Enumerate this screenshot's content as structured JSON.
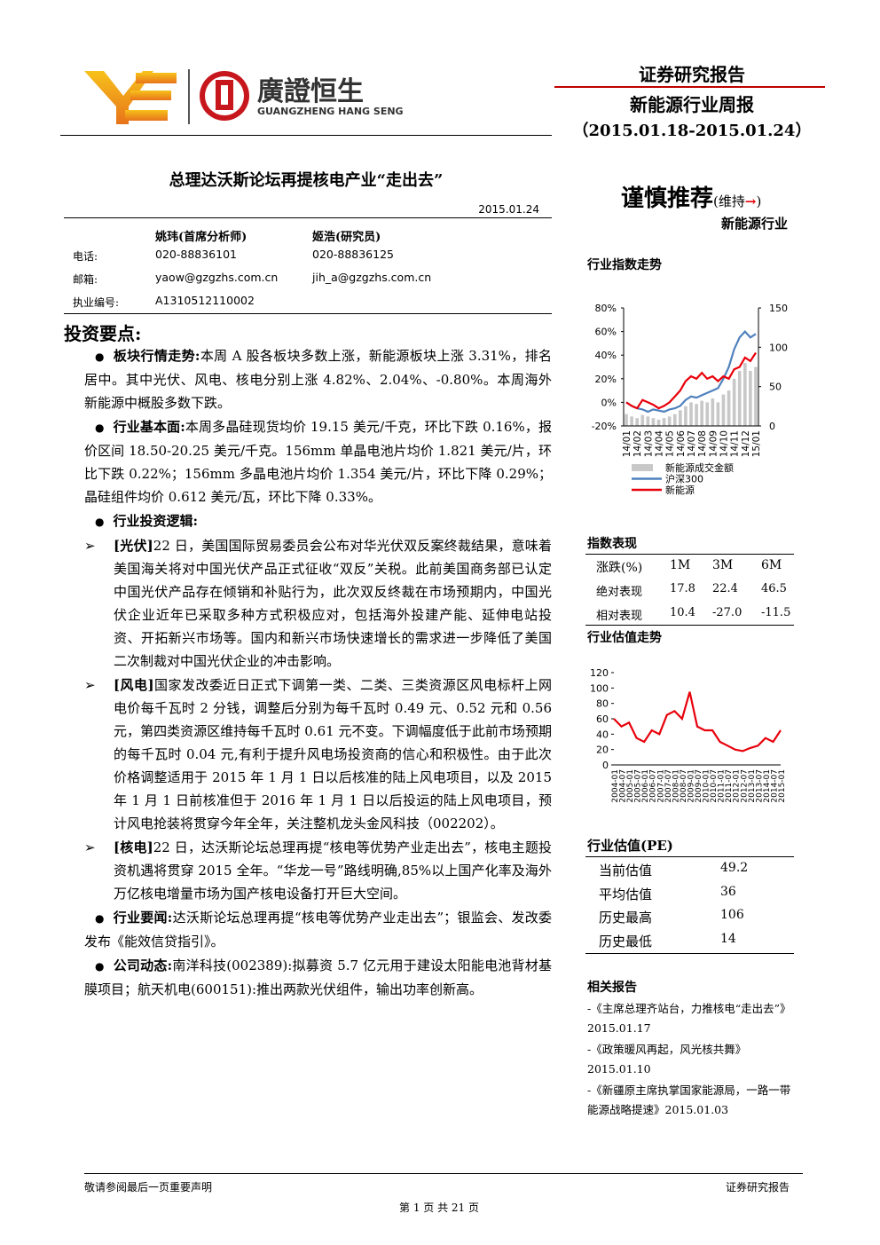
{
  "header": {
    "logo_cn": "廣證恒生",
    "logo_en": "GUANGZHENG HANG SENG",
    "report_type": "证券研究报告",
    "report_name": "新能源行业周报",
    "period": "（2015.01.18-2015.01.24）"
  },
  "title": "总理达沃斯论坛再提核电产业“走出去”",
  "date": "2015.01.24",
  "analysts": {
    "names": [
      "姚玮(首席分析师)",
      "姬浩(研究员)"
    ],
    "rows": [
      {
        "label": "电话:",
        "values": [
          "020-88836101",
          "020-88836125"
        ]
      },
      {
        "label": "邮箱:",
        "values": [
          "yaow@gzgzhs.com.cn",
          "jih_a@gzgzhs.com.cn"
        ]
      },
      {
        "label": "执业编号:",
        "values": [
          "A1310512110002"
        ]
      }
    ]
  },
  "rating": {
    "rating": "谨慎推荐",
    "change_text": "(维持",
    "change_arrow": "→",
    "change_close": ")",
    "industry": "新能源行业"
  },
  "body": {
    "heading": "投资要点:",
    "points": [
      {
        "marker": "dot",
        "label": "板块行情走势:",
        "text": "本周 A 股各板块多数上涨，新能源板块上涨 3.31%，排名居中。其中光伏、风电、核电分别上涨 4.82%、2.04%、-0.80%。本周海外新能源中概股多数下跌。"
      },
      {
        "marker": "dot",
        "label": "行业基本面:",
        "text": "本周多晶硅现货均价 19.15 美元/千克，环比下跌 0.16%，报价区间 18.50-20.25 美元/千克。156mm 单晶电池片均价 1.821 美元/片，环比下跌 0.22%；156mm 多晶电池片均价 1.354 美元/片，环比下降 0.29%；晶硅组件均价 0.612 美元/瓦，环比下降 0.33%。"
      },
      {
        "marker": "dot",
        "label": "行业投资逻辑:",
        "text": ""
      },
      {
        "marker": "arrow",
        "label": "[光伏]",
        "text": "22 日，美国国际贸易委员会公布对华光伏双反案终裁结果，意味着美国海关将对中国光伏产品正式征收“双反”关税。此前美国商务部已认定中国光伏产品存在倾销和补贴行为，此次双反终裁在市场预期内，中国光伏企业近年已采取多种方式积极应对，包括海外投建产能、延伸电站投资、开拓新兴市场等。国内和新兴市场快速增长的需求进一步降低了美国二次制裁对中国光伏企业的冲击影响。"
      },
      {
        "marker": "arrow",
        "label": "[风电]",
        "text": "国家发改委近日正式下调第一类、二类、三类资源区风电标杆上网电价每千瓦时 2 分钱，调整后分别为每千瓦时 0.49 元、0.52 元和 0.56 元，第四类资源区维持每千瓦时 0.61 元不变。下调幅度低于此前市场预期的每千瓦时 0.04 元,有利于提升风电场投资商的信心和积极性。由于此次价格调整适用于 2015 年 1 月 1 日以后核准的陆上风电项目，以及 2015 年 1 月 1 日前核准但于 2016 年 1 月 1 日以后投运的陆上风电项目，预计风电抢装将贯穿今年全年，关注整机龙头金风科技（002202）。"
      },
      {
        "marker": "arrow",
        "label": "[核电]",
        "text": "22 日，达沃斯论坛总理再提“核电等优势产业走出去”，核电主题投资机遇将贯穿 2015 全年。“华龙一号”路线明确,85%以上国产化率及海外万亿核电增量市场为国产核电设备打开巨大空间。"
      },
      {
        "marker": "dot",
        "label": "行业要闻:",
        "text": "达沃斯论坛总理再提“核电等优势产业走出去”；银监会、发改委发布《能效信贷指引》。"
      },
      {
        "marker": "dot",
        "label": "公司动态:",
        "text": "南洋科技(002389):拟募资 5.7 亿元用于建设太阳能电池背材基膜项目；航天机电(600151):推出两款光伏组件，输出功率创新高。"
      }
    ]
  },
  "chart_data": [
    {
      "type": "combo",
      "title": "行业指数走势",
      "categories": [
        "14/01",
        null,
        "14/02",
        null,
        "14/03",
        null,
        "14/04",
        null,
        "14/05",
        null,
        "14/06",
        null,
        "14/07",
        null,
        "14/08",
        null,
        "14/09",
        null,
        "14/10",
        null,
        "14/11",
        null,
        "14/12",
        null,
        "15/01"
      ],
      "ylim": [
        -20,
        80
      ],
      "yticks": [
        {
          "value": -20,
          "label": "-20%"
        },
        {
          "value": 0,
          "label": "0%"
        },
        {
          "value": 20,
          "label": "20%"
        },
        {
          "value": 40,
          "label": "40%"
        },
        {
          "value": 60,
          "label": "60%"
        },
        {
          "value": 80,
          "label": "80%"
        }
      ],
      "y2lim": [
        0,
        150
      ],
      "y2ticks": [
        0,
        50,
        100,
        150
      ],
      "legend": "bottom",
      "series": [
        {
          "name": "新能源成交金额",
          "kind": "bar",
          "axis": "y2",
          "color": "#c8c8c8",
          "values": [
            15,
            12,
            10,
            14,
            12,
            10,
            8,
            10,
            12,
            15,
            20,
            25,
            30,
            28,
            32,
            30,
            35,
            30,
            40,
            45,
            60,
            70,
            80,
            70,
            75
          ]
        },
        {
          "name": "沪深300",
          "kind": "line",
          "color": "#4f81bd",
          "values": [
            0,
            -3,
            -5,
            -6,
            -8,
            -6,
            -7,
            -8,
            -6,
            -5,
            -3,
            2,
            5,
            4,
            6,
            8,
            10,
            12,
            20,
            30,
            45,
            55,
            60,
            55,
            58
          ]
        },
        {
          "name": "新能源",
          "kind": "line",
          "color": "#e8000b",
          "values": [
            0,
            -3,
            -5,
            2,
            0,
            -2,
            -5,
            -3,
            0,
            5,
            10,
            18,
            22,
            20,
            25,
            20,
            22,
            18,
            22,
            20,
            28,
            30,
            38,
            35,
            42
          ]
        }
      ]
    },
    {
      "type": "line",
      "title": "行业估值走势",
      "categories": [
        "2004-01",
        "2004-07",
        "2005-01",
        "2005-07",
        "2006-01",
        "2006-07",
        "2007-01",
        "2007-07",
        "2008-01",
        "2008-07",
        "2009-01",
        "2009-07",
        "2010-01",
        "2010-07",
        "2011-01",
        "2011-07",
        "2012-01",
        "2012-07",
        "2013-01",
        "2013-07",
        "2014-01",
        "2014-07",
        "2015-01"
      ],
      "ylim": [
        0,
        120
      ],
      "yticks": [
        0,
        20,
        40,
        60,
        80,
        100,
        120
      ],
      "series": [
        {
          "color": "#e8000b",
          "values": [
            60,
            50,
            55,
            35,
            30,
            45,
            40,
            65,
            70,
            60,
            95,
            50,
            45,
            45,
            30,
            25,
            20,
            18,
            22,
            25,
            35,
            30,
            45
          ]
        }
      ]
    }
  ],
  "index_table": {
    "title": "指数表现",
    "header": [
      "涨跌(%)",
      "1M",
      "3M",
      "6M"
    ],
    "rows": [
      [
        "绝对表现",
        "17.8",
        "22.4",
        "46.5"
      ],
      [
        "相对表现",
        "10.4",
        "-27.0",
        "-11.5"
      ]
    ]
  },
  "pe_table": {
    "title": "行业估值(PE)",
    "rows": [
      [
        "当前估值",
        "49.2"
      ],
      [
        "平均估值",
        "36"
      ],
      [
        "历史最高",
        "106"
      ],
      [
        "历史最低",
        "14"
      ]
    ]
  },
  "related": {
    "title": "相关报告",
    "items": [
      "-《主席总理齐站台，力推核电“走出去”》2015.01.17",
      "-《政策暖风再起，风光核共舞》2015.01.10",
      "-《新疆原主席执掌国家能源局，一路一带能源战略提速》2015.01.03"
    ]
  },
  "footer": {
    "left": "敬请参阅最后一页重要声明",
    "right": "证券研究报告",
    "page": "第 1 页 共 21 页"
  }
}
